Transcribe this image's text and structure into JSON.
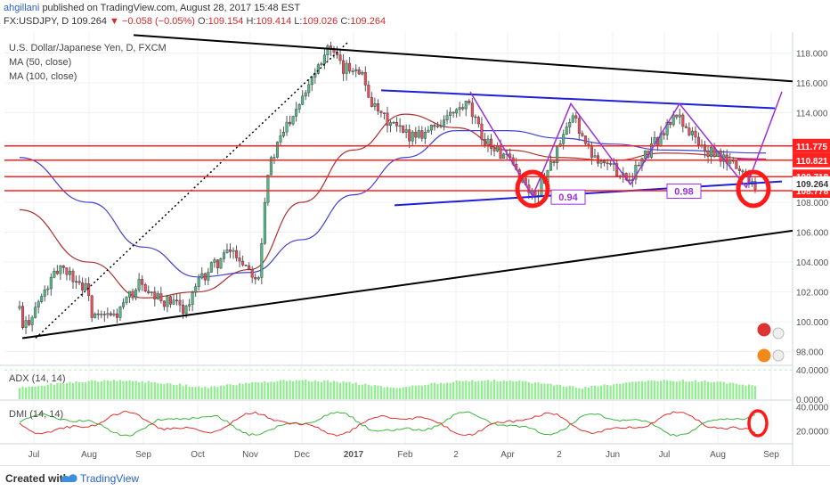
{
  "header": {
    "author": "ahgillani",
    "published_text": "published on TradingView.com, August 28, 2017 15:48 EST",
    "symbol": "FX:USDJPY, D",
    "last_price": "109.264",
    "change_arrow": "▼",
    "change_text": "−0.058 (−0.05%)",
    "o_label": "O:",
    "o_value": "109.154",
    "h_label": "H:",
    "h_value": "109.414",
    "l_label": "L:",
    "l_value": "109.026",
    "c_label": "C:",
    "c_value": "109.264"
  },
  "legend": {
    "title": "U.S. Dollar/Japanese Yen, D, FXCM",
    "ma50": "MA (50, close)",
    "ma100": "MA (100, close)",
    "adx": "ADX (14, 14)",
    "dmi": "DMI (14, 14)"
  },
  "footer": {
    "created_with": "Created with",
    "brand": "TradingView"
  },
  "colors": {
    "up": "#53b987",
    "down": "#eb4d5c",
    "ma50": "#b03030",
    "ma100": "#4040d0",
    "trend": "#000000",
    "channel": "#1f1fd8",
    "support": "#ff2020",
    "purple": "#9b30d9",
    "adx": "#90ee90",
    "dmi_plus": "#3cb43c",
    "dmi_minus": "#e03030",
    "marker": "#ff1a1a"
  },
  "chart_data": [
    {
      "type": "candlestick",
      "title": "U.S. Dollar/Japanese Yen, D, FXCM",
      "y_range": [
        97.2,
        119.4
      ],
      "y_ticks": [
        "118.000",
        "116.000",
        "114.000",
        "112.000",
        "110.000",
        "108.000",
        "106.000",
        "104.000",
        "102.000",
        "100.000",
        "98.000"
      ],
      "x_ticks": [
        "Jul",
        "Aug",
        "Sep",
        "Oct",
        "Nov",
        "Dec",
        "2017",
        "Feb",
        "2",
        "Apr",
        "2",
        "Jun",
        "Jul",
        "Aug",
        "Sep"
      ],
      "current_price": "109.264",
      "level_labels": [
        "111.775",
        "110.821",
        "109.718",
        "108.778"
      ],
      "annotations": [
        "0.94",
        "0.98"
      ],
      "price_path": [
        {
          "x": "Jul",
          "y": 100.9
        },
        {
          "x": "Jul",
          "y": 99.4
        },
        {
          "x": "Jul",
          "y": 103.8
        },
        {
          "x": "Aug",
          "y": 102.0
        },
        {
          "x": "Aug",
          "y": 100.2
        },
        {
          "x": "Aug",
          "y": 100.4
        },
        {
          "x": "Sep",
          "y": 103.0
        },
        {
          "x": "Sep",
          "y": 102.0
        },
        {
          "x": "Sep",
          "y": 100.9
        },
        {
          "x": "Oct",
          "y": 102.5
        },
        {
          "x": "Oct",
          "y": 103.5
        },
        {
          "x": "Oct",
          "y": 104.8
        },
        {
          "x": "Nov",
          "y": 103.0
        },
        {
          "x": "Nov",
          "y": 110.0
        },
        {
          "x": "Nov",
          "y": 113.0
        },
        {
          "x": "Dec",
          "y": 118.5
        },
        {
          "x": "Dec",
          "y": 116.8
        },
        {
          "x": "2017",
          "y": 117.2
        },
        {
          "x": "2017",
          "y": 114.0
        },
        {
          "x": "Feb",
          "y": 112.5
        },
        {
          "x": "Feb",
          "y": 112.8
        },
        {
          "x": "2",
          "y": 114.5
        },
        {
          "x": "2",
          "y": 112.5
        },
        {
          "x": "Apr",
          "y": 110.5
        },
        {
          "x": "Apr",
          "y": 108.3
        },
        {
          "x": "2",
          "y": 113.8
        },
        {
          "x": "2",
          "y": 111.5
        },
        {
          "x": "Jun",
          "y": 109.6
        },
        {
          "x": "Jul",
          "y": 113.9
        },
        {
          "x": "Jul",
          "y": 111.5
        },
        {
          "x": "Aug",
          "y": 110.5
        },
        {
          "x": "Aug",
          "y": 109.264
        }
      ],
      "series": [
        {
          "name": "MA (50, close)",
          "values": [
            {
              "x": "Jul",
              "y": 107.5
            },
            {
              "x": "Aug",
              "y": 104.0
            },
            {
              "x": "Sep",
              "y": 101.6
            },
            {
              "x": "Oct",
              "y": 102.0
            },
            {
              "x": "Nov",
              "y": 103.5
            },
            {
              "x": "Dec",
              "y": 108.0
            },
            {
              "x": "2017",
              "y": 111.5
            },
            {
              "x": "Feb",
              "y": 113.9
            },
            {
              "x": "2",
              "y": 113.0
            },
            {
              "x": "Apr",
              "y": 111.5
            },
            {
              "x": "2",
              "y": 111.0
            },
            {
              "x": "Jun",
              "y": 110.8
            },
            {
              "x": "Jul",
              "y": 111.3
            },
            {
              "x": "Aug",
              "y": 110.9
            }
          ]
        },
        {
          "name": "MA (100, close)",
          "values": [
            {
              "x": "Jul",
              "y": 111.0
            },
            {
              "x": "Aug",
              "y": 108.0
            },
            {
              "x": "Sep",
              "y": 105.0
            },
            {
              "x": "Oct",
              "y": 103.0
            },
            {
              "x": "Nov",
              "y": 103.3
            },
            {
              "x": "Dec",
              "y": 105.5
            },
            {
              "x": "2017",
              "y": 108.5
            },
            {
              "x": "Feb",
              "y": 111.0
            },
            {
              "x": "2",
              "y": 112.8
            },
            {
              "x": "Apr",
              "y": 112.8
            },
            {
              "x": "2",
              "y": 112.3
            },
            {
              "x": "Jun",
              "y": 111.9
            },
            {
              "x": "Jul",
              "y": 111.5
            },
            {
              "x": "Aug",
              "y": 111.3
            }
          ]
        }
      ]
    },
    {
      "type": "area",
      "title": "ADX (14, 14)",
      "y_ticks": [
        "40.0000",
        "0.0000"
      ],
      "y_range": [
        0,
        45
      ]
    },
    {
      "type": "line",
      "title": "DMI (14, 14)",
      "y_ticks": [
        "40.0000",
        "20.0000"
      ],
      "y_range": [
        10,
        45
      ]
    }
  ]
}
